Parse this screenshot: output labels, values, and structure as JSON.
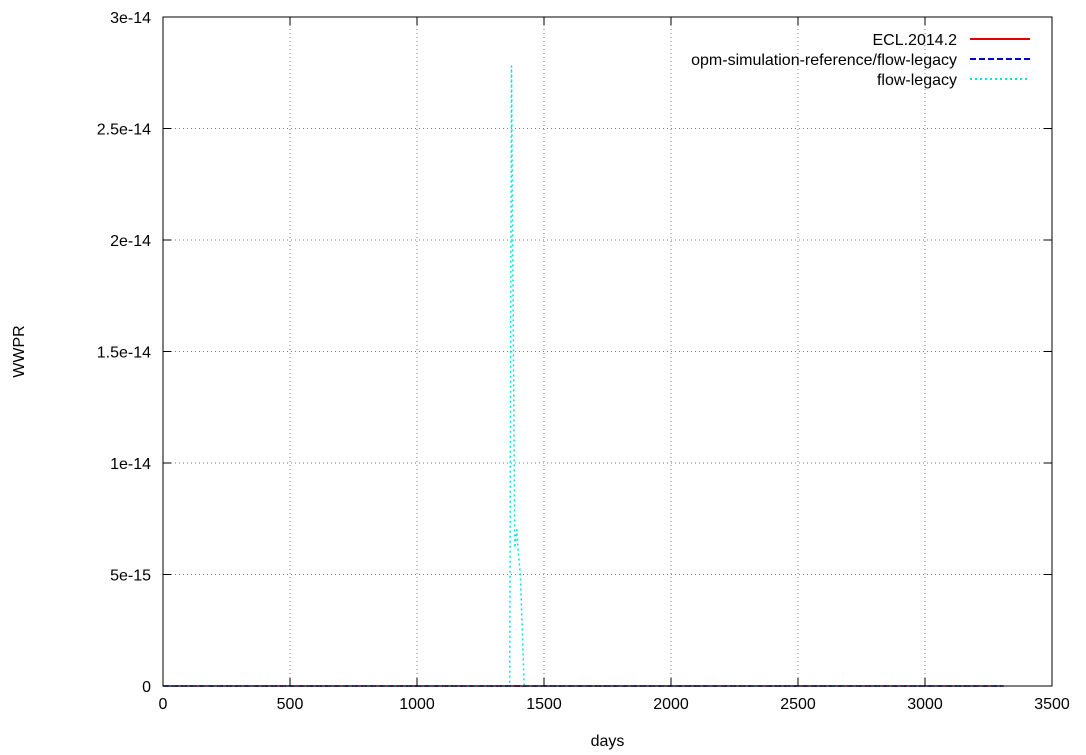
{
  "chart_data": {
    "type": "line",
    "title": "",
    "xlabel": "days",
    "ylabel": "WWPR",
    "xlim": [
      0,
      3500
    ],
    "ylim": [
      0,
      3e-14
    ],
    "grid": true,
    "legend_position": "top-right",
    "x_ticks": [
      {
        "value": 0,
        "label": "0"
      },
      {
        "value": 500,
        "label": "500"
      },
      {
        "value": 1000,
        "label": "1000"
      },
      {
        "value": 1500,
        "label": "1500"
      },
      {
        "value": 2000,
        "label": "2000"
      },
      {
        "value": 2500,
        "label": "2500"
      },
      {
        "value": 3000,
        "label": "3000"
      },
      {
        "value": 3500,
        "label": "3500"
      }
    ],
    "y_ticks": [
      {
        "value": 0,
        "label": "0"
      },
      {
        "value": 5e-15,
        "label": "5e-15"
      },
      {
        "value": 1e-14,
        "label": "1e-14"
      },
      {
        "value": 1.5e-14,
        "label": "1.5e-14"
      },
      {
        "value": 2e-14,
        "label": "2e-14"
      },
      {
        "value": 2.5e-14,
        "label": "2.5e-14"
      },
      {
        "value": 3e-14,
        "label": "3e-14"
      }
    ],
    "series": [
      {
        "name": "ECL.2014.2",
        "color": "#e00000",
        "dash": "solid",
        "x": [
          0,
          3310
        ],
        "y": [
          0,
          0
        ]
      },
      {
        "name": "opm-simulation-reference/flow-legacy",
        "color": "#0000cc",
        "dash": "dashed",
        "x": [
          0,
          3310
        ],
        "y": [
          0,
          0
        ]
      },
      {
        "name": "flow-legacy",
        "color": "#00e5e5",
        "dash": "dotted",
        "x": [
          0,
          1365,
          1372,
          1385,
          1393,
          1400,
          1407,
          1422,
          3310
        ],
        "y": [
          0,
          0,
          2.78e-14,
          6.2e-15,
          7e-15,
          5.8e-15,
          5e-15,
          0,
          0
        ]
      }
    ]
  }
}
